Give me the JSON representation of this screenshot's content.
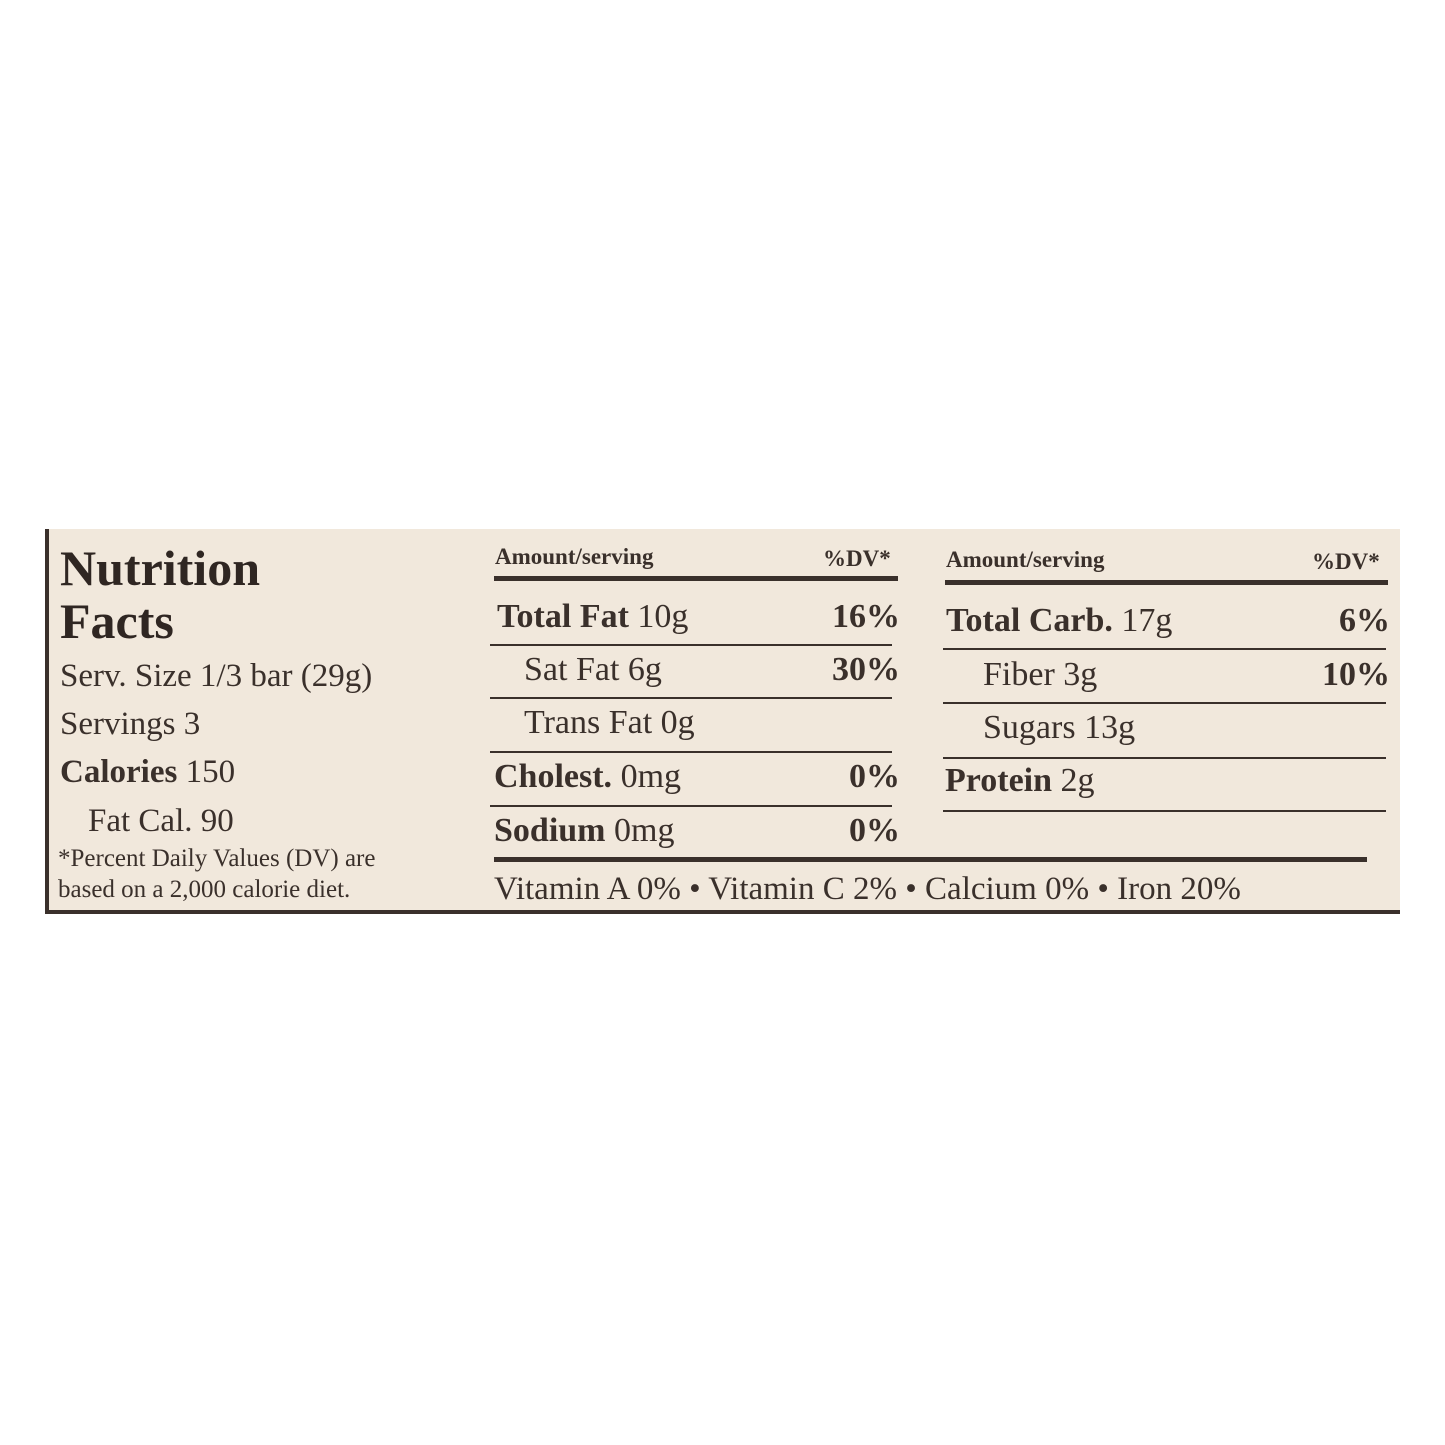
{
  "title_line1": "Nutrition",
  "title_line2": "Facts",
  "serving_size": "Serv. Size 1/3 bar (29g)",
  "servings": "Servings 3",
  "calories_label": "Calories",
  "calories_value": "150",
  "fat_calories": "Fat Cal. 90",
  "footnote_line1": "*Percent Daily Values (DV) are",
  "footnote_line2": "based on a 2,000 calorie diet.",
  "left_table": {
    "header_amount": "Amount/serving",
    "header_dv": "%DV*",
    "rows": [
      {
        "name": "Total Fat",
        "amount": "10g",
        "dv": "16%"
      },
      {
        "name": "Sat Fat",
        "amount": "6g",
        "dv": "30%"
      },
      {
        "name": "Trans Fat",
        "amount": "0g",
        "dv": ""
      },
      {
        "name": "Cholest.",
        "amount": "0mg",
        "dv": "0%"
      },
      {
        "name": "Sodium",
        "amount": "0mg",
        "dv": "0%"
      }
    ]
  },
  "right_table": {
    "header_amount": "Amount/serving",
    "header_dv": "%DV*",
    "rows": [
      {
        "name": "Total Carb.",
        "amount": "17g",
        "dv": "6%"
      },
      {
        "name": "Fiber",
        "amount": "3g",
        "dv": "10%"
      },
      {
        "name": "Sugars",
        "amount": "13g",
        "dv": ""
      },
      {
        "name": "Protein",
        "amount": "2g",
        "dv": ""
      }
    ]
  },
  "vitamins": "Vitamin A 0% • Vitamin C 2% • Calcium 0% • Iron 20%",
  "colors": {
    "background": "#f1e8dc",
    "ink": "#3a302b"
  }
}
